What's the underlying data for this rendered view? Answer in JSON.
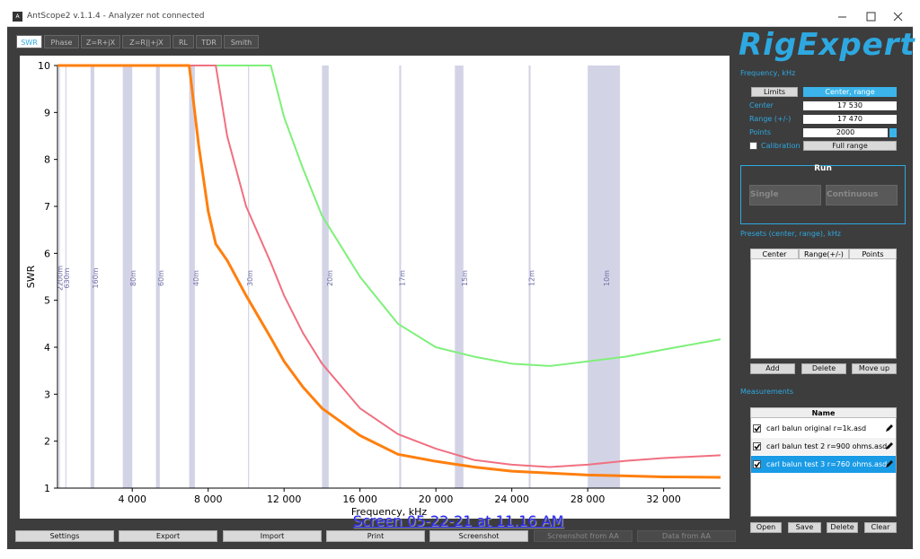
{
  "window": {
    "title": "AntScope2 v.1.1.4 - Analyzer not connected",
    "logo": "RigExpert"
  },
  "tabs": [
    "SWR",
    "Phase",
    "Z=R+jX",
    "Z=R||+jX",
    "RL",
    "TDR",
    "Smith"
  ],
  "chart_data": {
    "type": "line",
    "ylabel": "SWR",
    "xlabel": "Frequency, kHz",
    "x": [
      60,
      2000,
      4000,
      6000,
      7000,
      7500,
      8000,
      8400,
      9000,
      10000,
      11300,
      12000,
      13000,
      14000,
      16000,
      18000,
      20000,
      22000,
      24000,
      26000,
      28000,
      30000,
      32000,
      35000
    ],
    "series": [
      {
        "color": "#7ef07a",
        "values": [
          10,
          10,
          10,
          10,
          10,
          10,
          10,
          10,
          10,
          10,
          10,
          8.9,
          7.8,
          6.8,
          5.5,
          4.5,
          4.0,
          3.8,
          3.65,
          3.6,
          3.7,
          3.8,
          3.95,
          4.17
        ]
      },
      {
        "color": "#f07080",
        "values": [
          10,
          10,
          10,
          10,
          10,
          10,
          10,
          10,
          8.5,
          7.0,
          5.8,
          5.1,
          4.3,
          3.65,
          2.7,
          2.15,
          1.84,
          1.6,
          1.5,
          1.45,
          1.5,
          1.58,
          1.64,
          1.7
        ]
      },
      {
        "color": "#ff7f0e",
        "values": [
          10,
          10,
          10,
          10,
          10,
          8.3,
          6.9,
          6.2,
          5.85,
          5.1,
          4.2,
          3.7,
          3.15,
          2.7,
          2.12,
          1.72,
          1.57,
          1.45,
          1.36,
          1.32,
          1.28,
          1.26,
          1.24,
          1.23
        ]
      }
    ],
    "xlim": [
      60,
      35000
    ],
    "ylim": [
      1,
      10
    ],
    "xticks": [
      {
        "value": 4000,
        "label": "4 000"
      },
      {
        "value": 8000,
        "label": "8 000"
      },
      {
        "value": 12000,
        "label": "12 000"
      },
      {
        "value": 16000,
        "label": "16 000"
      },
      {
        "value": 20000,
        "label": "20 000"
      },
      {
        "value": 24000,
        "label": "24 000"
      },
      {
        "value": 28000,
        "label": "28 000"
      },
      {
        "value": 32000,
        "label": "32 000"
      }
    ],
    "yticks": [
      1,
      2,
      3,
      4,
      5,
      6,
      7,
      8,
      9,
      10
    ],
    "band_color": "#d3d3e6",
    "bands": [
      {
        "label": "2200m",
        "range": [
          135.7,
          137.8
        ]
      },
      {
        "label": "630m",
        "range": [
          472,
          479
        ]
      },
      {
        "label": "160m",
        "range": [
          1800,
          2000
        ]
      },
      {
        "label": "80m",
        "range": [
          3500,
          4000
        ]
      },
      {
        "label": "60m",
        "range": [
          5250,
          5450
        ]
      },
      {
        "label": "40m",
        "range": [
          7000,
          7300
        ]
      },
      {
        "label": "30m",
        "range": [
          10100,
          10150
        ]
      },
      {
        "label": "20m",
        "range": [
          14000,
          14350
        ]
      },
      {
        "label": "17m",
        "range": [
          18068,
          18168
        ]
      },
      {
        "label": "15m",
        "range": [
          21000,
          21450
        ]
      },
      {
        "label": "12m",
        "range": [
          24890,
          24990
        ]
      },
      {
        "label": "10m",
        "range": [
          28000,
          29700
        ]
      }
    ]
  },
  "overlay": "Screen 05-22-21 at 11.16 AM",
  "toolbar": [
    "Settings",
    "Export",
    "Import",
    "Print",
    "Screenshot",
    "Screenshot from AA",
    "Data from AA"
  ],
  "panel": {
    "frequency_label": "Frequency, kHz",
    "mode_buttons": [
      "Limits",
      "Center, range"
    ],
    "fields": [
      {
        "label": "Center",
        "value": "17 530"
      },
      {
        "label": "Range (+/-)",
        "value": "17 470"
      },
      {
        "label": "Points",
        "value": "2000"
      }
    ],
    "calibration": {
      "label": "Calibration",
      "checked": false
    },
    "full_range": "Full range",
    "run": {
      "title": "Run",
      "buttons": [
        "Single",
        "Continuous"
      ]
    },
    "presets_label": "Presets (center, range), kHz",
    "presets_columns": [
      "Center",
      "Range(+/-)",
      "Points"
    ],
    "presets_buttons": [
      "Add",
      "Delete",
      "Move up"
    ],
    "measurements_label": "Measurements",
    "measurements_column": "Name",
    "measurements": [
      {
        "name": "carl balun original r=1k.asd",
        "checked": true,
        "selected": false
      },
      {
        "name": "carl balun test 2 r=900 ohms.asd",
        "checked": true,
        "selected": false
      },
      {
        "name": "carl balun test 3 r=760 ohms.asd",
        "checked": true,
        "selected": true
      }
    ],
    "measurements_buttons": [
      "Open",
      "Save",
      "Delete",
      "Clear"
    ]
  }
}
